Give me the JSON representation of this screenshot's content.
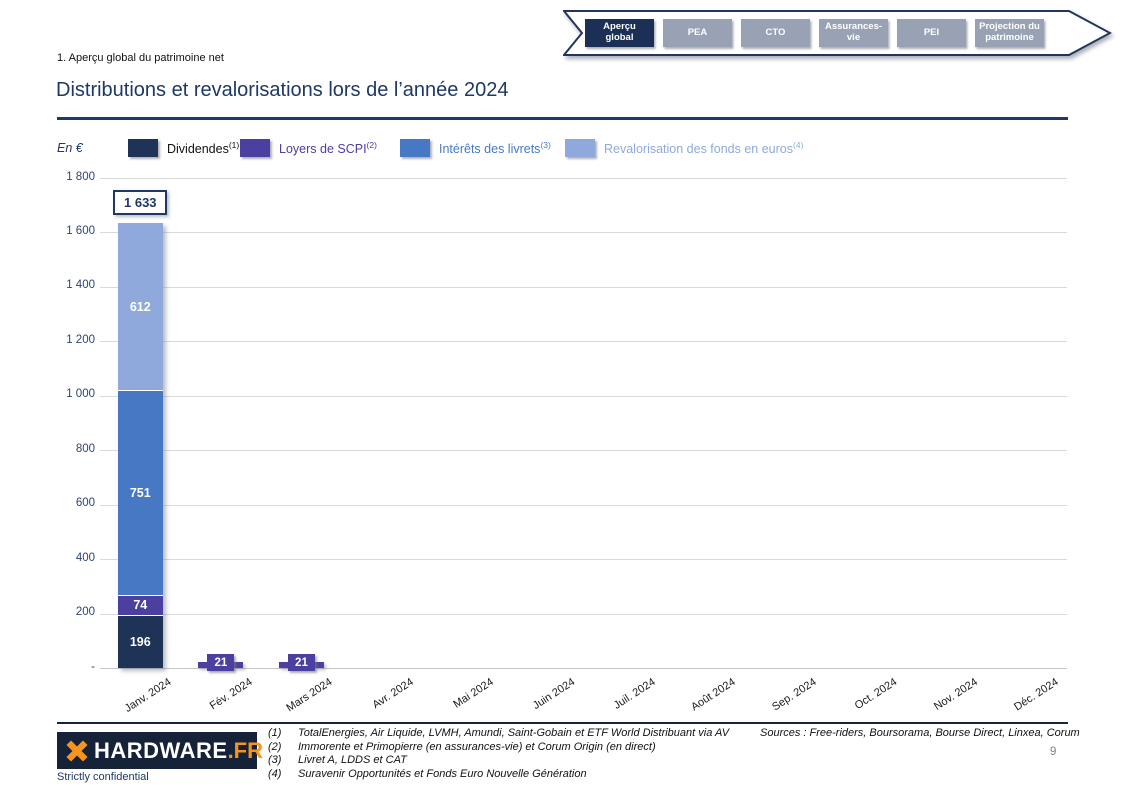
{
  "nav": {
    "tabs": [
      {
        "label": "Aperçu global",
        "active": true
      },
      {
        "label": "PEA",
        "active": false
      },
      {
        "label": "CTO",
        "active": false
      },
      {
        "label": "Assurances-vie",
        "active": false
      },
      {
        "label": "PEI",
        "active": false
      },
      {
        "label": "Projection du patrimoine",
        "active": false
      }
    ]
  },
  "breadcrumb": "1. Aperçu global du patrimoine net",
  "title": "Distributions et revalorisations lors de l’année 2024",
  "chart_data": {
    "type": "bar",
    "stacked": true,
    "title": "Distributions et revalorisations lors de l’année 2024",
    "unit_label": "En €",
    "categories": [
      "Janv. 2024",
      "Fév. 2024",
      "Mars 2024",
      "Avr. 2024",
      "Mai 2024",
      "Juin 2024",
      "Juil. 2024",
      "Août 2024",
      "Sep. 2024",
      "Oct. 2024",
      "Nov. 2024",
      "Déc. 2024"
    ],
    "series": [
      {
        "name": "Dividendes",
        "footnote": "(1)",
        "color": "#1f3356",
        "legend_text_color": "#111111",
        "values": [
          196,
          0,
          0,
          0,
          0,
          0,
          0,
          0,
          0,
          0,
          0,
          0
        ]
      },
      {
        "name": "Loyers de SCPI",
        "footnote": "(2)",
        "color": "#4b3fa0",
        "legend_text_color": "#4b3fa0",
        "values": [
          74,
          21,
          21,
          0,
          0,
          0,
          0,
          0,
          0,
          0,
          0,
          0
        ]
      },
      {
        "name": "Intérêts des livrets",
        "footnote": "(3)",
        "color": "#4678c4",
        "legend_text_color": "#4678c4",
        "values": [
          751,
          0,
          0,
          0,
          0,
          0,
          0,
          0,
          0,
          0,
          0,
          0
        ]
      },
      {
        "name": "Revalorisation des fonds en euros",
        "footnote": "(4)",
        "color": "#8fa9dc",
        "legend_text_color": "#8fa9dc",
        "values": [
          612,
          0,
          0,
          0,
          0,
          0,
          0,
          0,
          0,
          0,
          0,
          0
        ]
      }
    ],
    "total_labels": [
      {
        "category_index": 0,
        "text": "1 633"
      }
    ],
    "ylim": [
      0,
      1800
    ],
    "ytick_step": 200,
    "yticks": [
      "1 800",
      "1 600",
      "1 400",
      "1 200",
      "1 000",
      "800",
      "600",
      "400",
      "200",
      "-"
    ],
    "grid": true,
    "legend_position": "top"
  },
  "footer": {
    "logo_text": "HARDWARE",
    "logo_suffix": ".FR",
    "confidential": "Strictly confidential",
    "footnotes": [
      {
        "num": "(1)",
        "text": "TotalEnergies, Air Liquide, LVMH, Amundi, Saint-Gobain et ETF World Distribuant via AV"
      },
      {
        "num": "(2)",
        "text": "Immorente et Primopierre (en assurances-vie) et Corum Origin (en direct)"
      },
      {
        "num": "(3)",
        "text": "Livret A, LDDS et CAT"
      },
      {
        "num": "(4)",
        "text": "Suravenir Opportunités et Fonds Euro Nouvelle Génération"
      }
    ],
    "sources": "Sources : Free-riders, Boursorama, Bourse Direct, Linxea, Corum",
    "page_number": "9"
  },
  "colors": {
    "accent_navy": "#1f3864",
    "tab_inactive": "#98a2b4",
    "tab_active": "#1c2f55",
    "gridline": "#d9d9d9",
    "logo_orange": "#f7941d"
  }
}
